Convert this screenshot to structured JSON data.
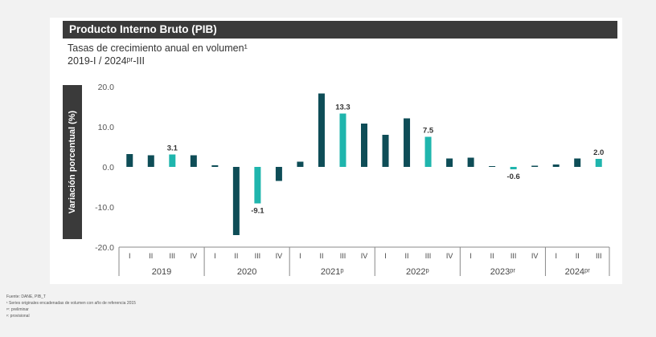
{
  "header": {
    "title": "Producto Interno Bruto (PIB)",
    "subtitle_line1": "Tasas de crecimiento anual en volumen¹",
    "subtitle_line2": "2019-I  / 2024ᵖʳ-III"
  },
  "footnotes": {
    "source": "Fuente: DANE, PIB_T",
    "note1": "¹ Series originales encadenadas de volumen con año de referencia 2015",
    "note2": "ᵖʳ: preliminar",
    "note3": "ᵖ: provisional"
  },
  "colors": {
    "dark": "#0e4d57",
    "light": "#1fb5ad",
    "axis": "#888888",
    "title_bg": "#3a3a3a"
  },
  "chart_data": {
    "type": "bar",
    "ylabel": "Variación porcentual (%)",
    "ylim": [
      -20,
      20
    ],
    "yticks": [
      "20.0",
      "10.0",
      "0.0",
      "-10.0",
      "-20.0"
    ],
    "ytick_values": [
      20,
      10,
      0,
      -10,
      -20
    ],
    "quarters": [
      "I",
      "II",
      "III",
      "IV",
      "I",
      "II",
      "III",
      "IV",
      "I",
      "II",
      "III",
      "IV",
      "I",
      "II",
      "III",
      "IV",
      "I",
      "II",
      "III",
      "IV",
      "I",
      "II",
      "III"
    ],
    "years": [
      {
        "label": "2019",
        "start": 0,
        "end": 3
      },
      {
        "label": "2020",
        "start": 4,
        "end": 7
      },
      {
        "label": "2021ᵖ",
        "start": 8,
        "end": 11
      },
      {
        "label": "2022ᵖ",
        "start": 12,
        "end": 15
      },
      {
        "label": "2023ᵖʳ",
        "start": 16,
        "end": 19
      },
      {
        "label": "2024ᵖʳ",
        "start": 20,
        "end": 22
      }
    ],
    "values": [
      3.2,
      2.9,
      3.1,
      2.9,
      0.4,
      -17.0,
      -9.1,
      -3.5,
      1.3,
      18.3,
      13.3,
      10.8,
      8.0,
      12.1,
      7.5,
      2.1,
      2.3,
      0.2,
      -0.6,
      0.3,
      0.6,
      2.1,
      2.0
    ],
    "highlight": [
      false,
      false,
      true,
      false,
      false,
      false,
      true,
      false,
      false,
      false,
      true,
      false,
      false,
      false,
      true,
      false,
      false,
      false,
      true,
      false,
      false,
      false,
      true
    ],
    "data_labels": [
      {
        "index": 2,
        "text": "3.1"
      },
      {
        "index": 6,
        "text": "-9.1"
      },
      {
        "index": 10,
        "text": "13.3"
      },
      {
        "index": 14,
        "text": "7.5"
      },
      {
        "index": 18,
        "text": "-0.6"
      },
      {
        "index": 22,
        "text": "2.0"
      }
    ]
  }
}
